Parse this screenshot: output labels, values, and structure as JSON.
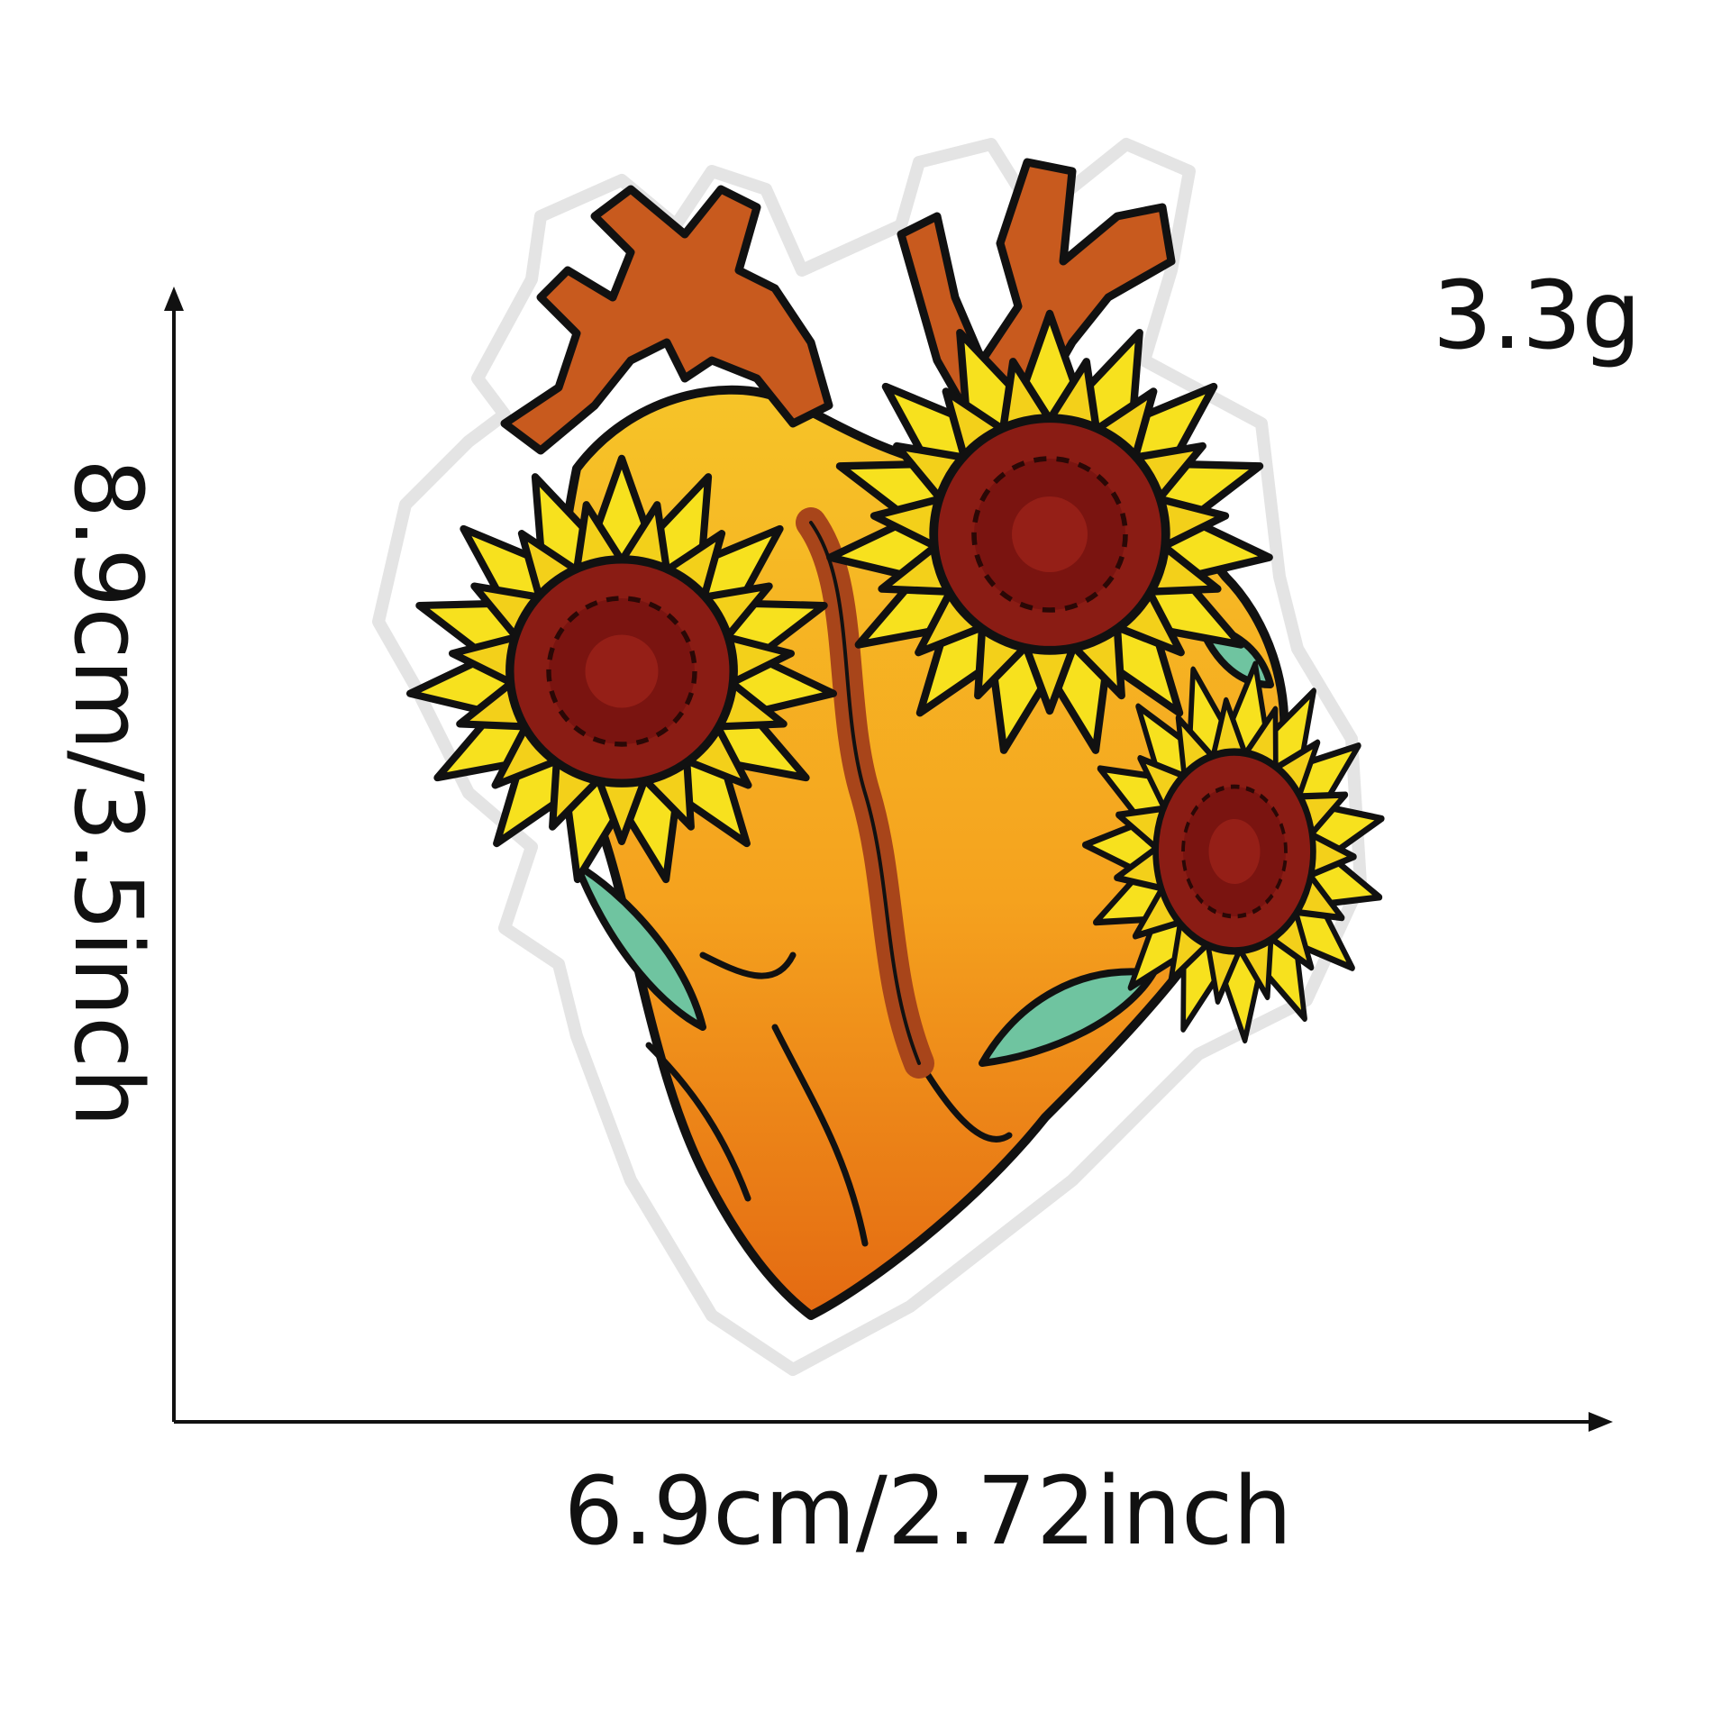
{
  "product_image": {
    "description_icon": "embroidered-sunflower-heart-patch"
  },
  "dimensions": {
    "weight_label": "3.3g",
    "height_label": "8.9cm/3.5inch",
    "width_label": "6.9cm/2.72inch"
  },
  "colors": {
    "patch_border": "#ffffff",
    "outline": "#111111",
    "vessel": "#c85a1e",
    "heart_orange": "#f08a1a",
    "heart_yellow": "#f6c428",
    "petal": "#f7e11e",
    "flower_center": "#8a1c14",
    "leaf": "#6fc4a0",
    "arrow": "#111111"
  }
}
